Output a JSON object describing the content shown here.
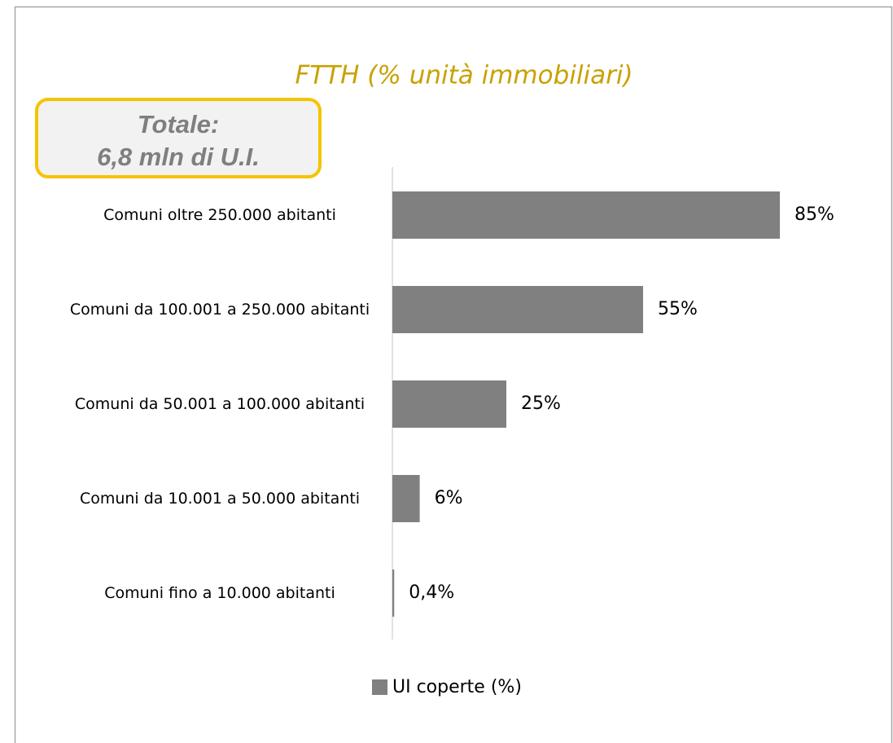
{
  "chart_data": {
    "type": "bar",
    "orientation": "horizontal",
    "title": "FTTH (% unità immobiliari)",
    "annotation": [
      "Totale:",
      "6,8 mln di U.I."
    ],
    "categories": [
      "Comuni oltre 250.000 abitanti",
      "Comuni da 100.001 a 250.000 abitanti",
      "Comuni da 50.001 a 100.000 abitanti",
      "Comuni da 10.001 a 50.000 abitanti",
      "Comuni fino a 10.000 abitanti"
    ],
    "series": [
      {
        "name": "UI coperte (%)",
        "color": "#808080",
        "values": [
          85,
          55,
          25,
          6,
          0.4
        ],
        "value_labels": [
          "85%",
          "55%",
          "25%",
          "6%",
          "0,4%"
        ]
      }
    ],
    "title_color": "#c9a100",
    "annotation_border_color": "#f5c400",
    "legend": "bottom"
  }
}
